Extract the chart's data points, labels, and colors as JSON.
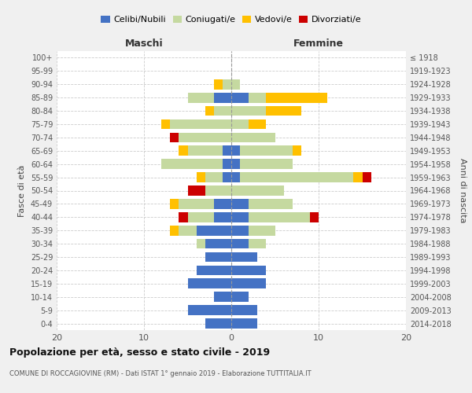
{
  "age_groups": [
    "0-4",
    "5-9",
    "10-14",
    "15-19",
    "20-24",
    "25-29",
    "30-34",
    "35-39",
    "40-44",
    "45-49",
    "50-54",
    "55-59",
    "60-64",
    "65-69",
    "70-74",
    "75-79",
    "80-84",
    "85-89",
    "90-94",
    "95-99",
    "100+"
  ],
  "birth_years": [
    "2014-2018",
    "2009-2013",
    "2004-2008",
    "1999-2003",
    "1994-1998",
    "1989-1993",
    "1984-1988",
    "1979-1983",
    "1974-1978",
    "1969-1973",
    "1964-1968",
    "1959-1963",
    "1954-1958",
    "1949-1953",
    "1944-1948",
    "1939-1943",
    "1934-1938",
    "1929-1933",
    "1924-1928",
    "1919-1923",
    "≤ 1918"
  ],
  "males": {
    "celibe": [
      3,
      5,
      2,
      5,
      4,
      3,
      3,
      4,
      2,
      2,
      0,
      1,
      1,
      1,
      0,
      0,
      0,
      2,
      0,
      0,
      0
    ],
    "coniugato": [
      0,
      0,
      0,
      0,
      0,
      0,
      1,
      2,
      3,
      4,
      3,
      2,
      7,
      4,
      6,
      7,
      2,
      3,
      1,
      0,
      0
    ],
    "vedovo": [
      0,
      0,
      0,
      0,
      0,
      0,
      0,
      1,
      0,
      1,
      0,
      1,
      0,
      1,
      0,
      1,
      1,
      0,
      1,
      0,
      0
    ],
    "divorziato": [
      0,
      0,
      0,
      0,
      0,
      0,
      0,
      0,
      1,
      0,
      2,
      0,
      0,
      0,
      1,
      0,
      0,
      0,
      0,
      0,
      0
    ]
  },
  "females": {
    "nubile": [
      3,
      3,
      2,
      4,
      4,
      3,
      2,
      2,
      2,
      2,
      0,
      1,
      1,
      1,
      0,
      0,
      0,
      2,
      0,
      0,
      0
    ],
    "coniugata": [
      0,
      0,
      0,
      0,
      0,
      0,
      2,
      3,
      7,
      5,
      6,
      13,
      6,
      6,
      5,
      2,
      4,
      2,
      1,
      0,
      0
    ],
    "vedova": [
      0,
      0,
      0,
      0,
      0,
      0,
      0,
      0,
      0,
      0,
      0,
      1,
      0,
      1,
      0,
      2,
      4,
      7,
      0,
      0,
      0
    ],
    "divorziata": [
      0,
      0,
      0,
      0,
      0,
      0,
      0,
      0,
      1,
      0,
      0,
      1,
      0,
      0,
      0,
      0,
      0,
      0,
      0,
      0,
      0
    ]
  },
  "colors": {
    "celibe": "#4472c4",
    "coniugato": "#c5d9a0",
    "vedovo": "#ffc000",
    "divorziato": "#cc0000"
  },
  "xlim": 20,
  "title": "Popolazione per età, sesso e stato civile - 2019",
  "subtitle": "COMUNE DI ROCCAGIOVINE (RM) - Dati ISTAT 1° gennaio 2019 - Elaborazione TUTTITALIA.IT",
  "ylabel_left": "Fasce di età",
  "ylabel_right": "Anni di nascita",
  "xlabel_left": "Maschi",
  "xlabel_right": "Femmine",
  "legend_labels": [
    "Celibi/Nubili",
    "Coniugati/e",
    "Vedovi/e",
    "Divorziati/e"
  ],
  "bg_color": "#f0f0f0",
  "plot_bg_color": "#ffffff"
}
